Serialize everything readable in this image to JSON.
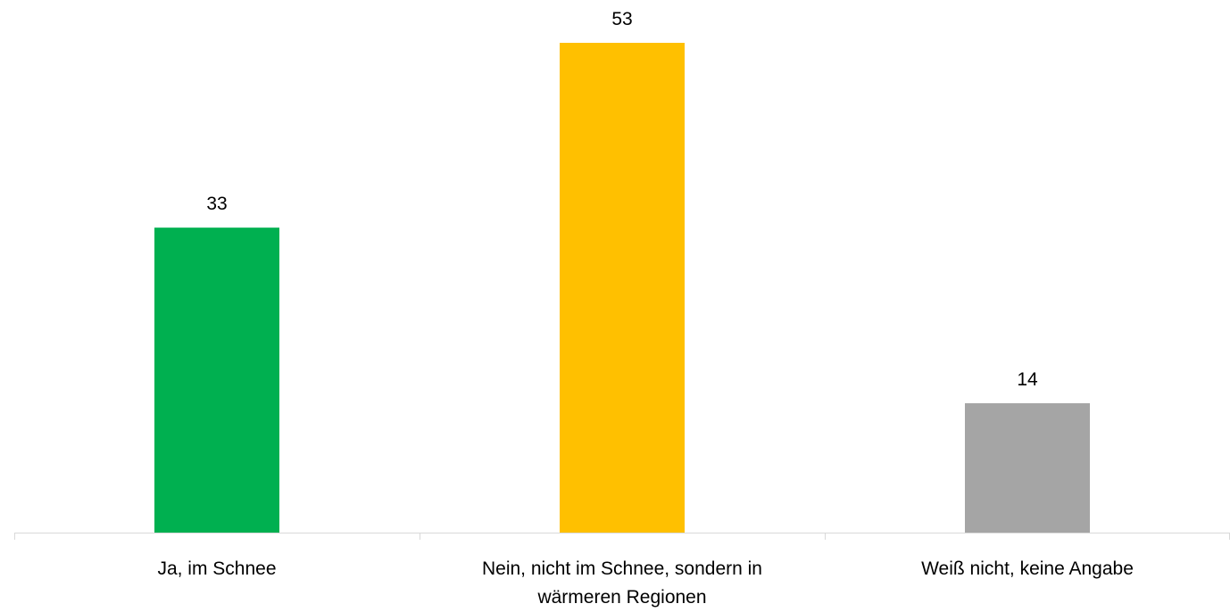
{
  "chart_data": {
    "type": "bar",
    "categories": [
      [
        "Ja, im Schnee"
      ],
      [
        "Nein, nicht im Schnee, sondern in",
        "wärmeren Regionen"
      ],
      [
        "Weiß nicht, keine Angabe"
      ]
    ],
    "values": [
      33,
      53,
      14
    ],
    "data_labels": [
      "33",
      "53",
      "14"
    ],
    "colors": [
      "#00b050",
      "#ffc000",
      "#a5a5a5"
    ],
    "title": "",
    "xlabel": "",
    "ylabel": "",
    "ylim": [
      0,
      60
    ],
    "grid": false,
    "legend": "none",
    "axis_color": "#d9d9d9"
  }
}
